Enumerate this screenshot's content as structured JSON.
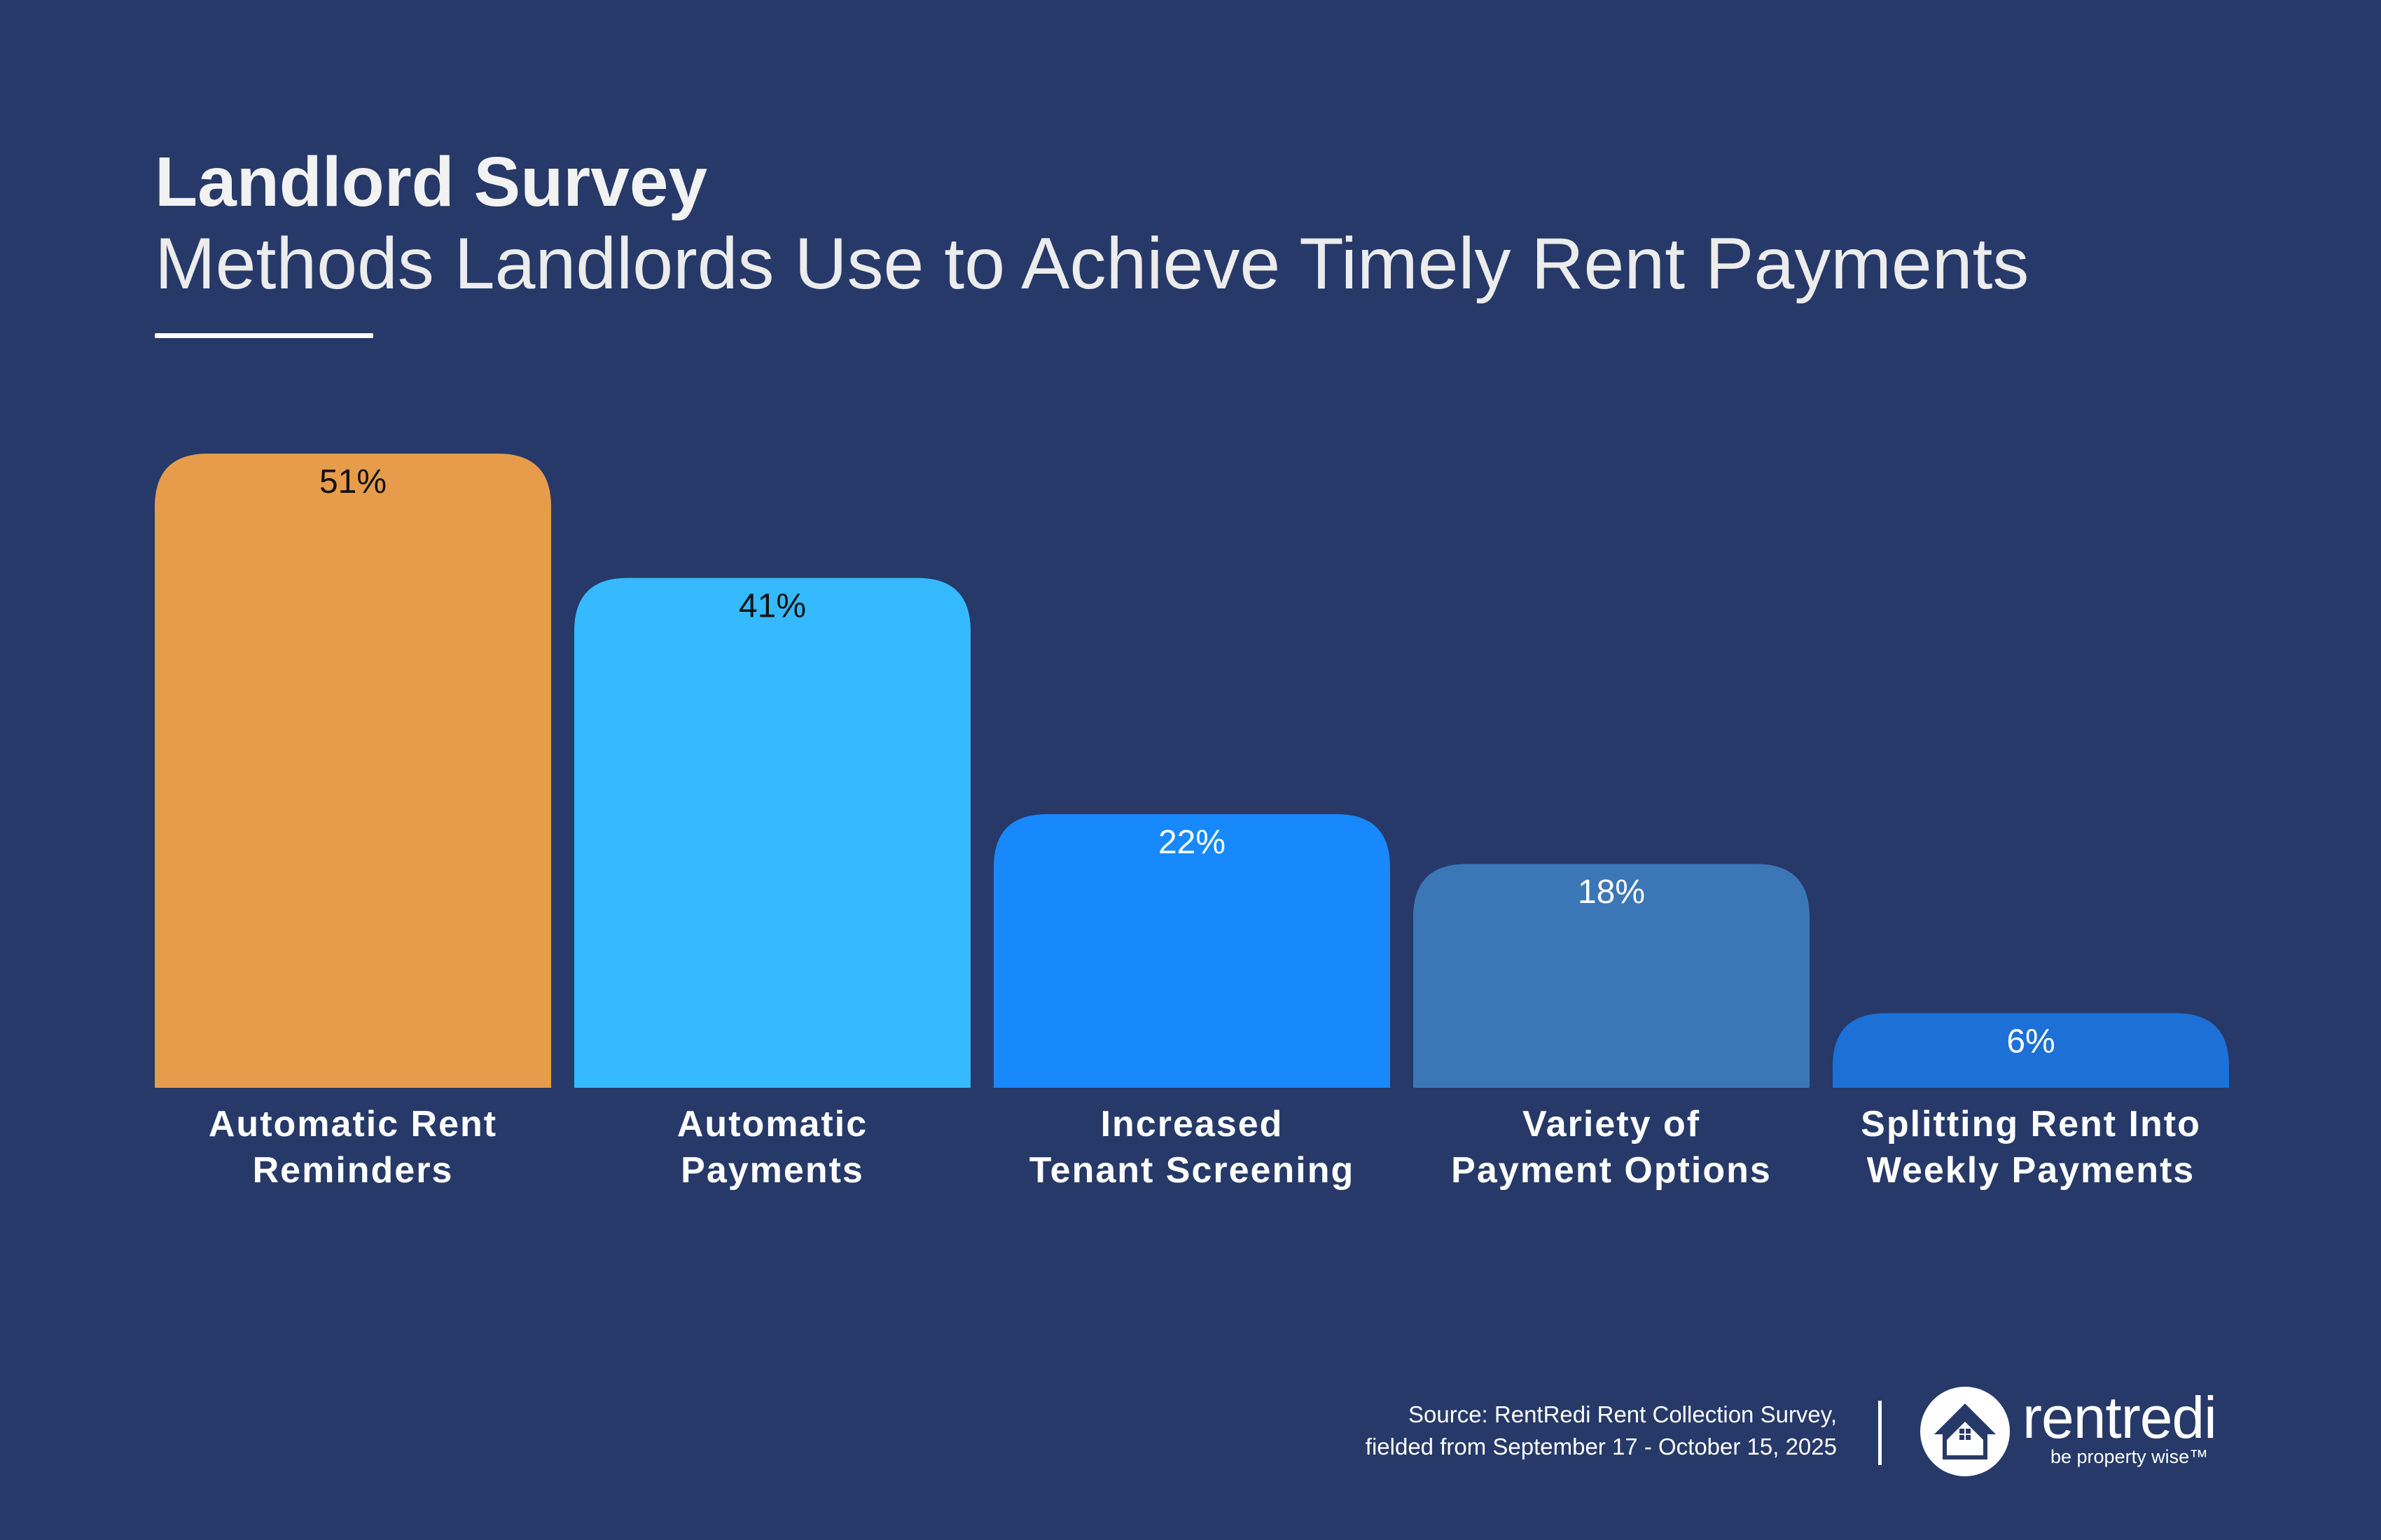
{
  "header": {
    "title": "Landlord Survey",
    "subtitle": "Methods Landlords Use to Achieve Timely Rent Payments"
  },
  "chart_data": {
    "type": "bar",
    "title": "Landlord Survey",
    "subtitle": "Methods Landlords Use to Achieve Timely Rent Payments",
    "categories": [
      [
        "Automatic Rent",
        "Reminders"
      ],
      [
        "Automatic",
        "Payments"
      ],
      [
        "Increased",
        "Tenant Screening"
      ],
      [
        "Variety of",
        "Payment Options"
      ],
      [
        "Splitting Rent Into",
        "Weekly Payments"
      ]
    ],
    "values": [
      51,
      41,
      22,
      18,
      6
    ],
    "value_labels": [
      "51%",
      "41%",
      "22%",
      "18%",
      "6%"
    ],
    "colors": [
      "#e69c4a",
      "#35baff",
      "#1789fd",
      "#3b77b6",
      "#1c70d6"
    ],
    "label_colors": [
      "#111111",
      "#111111",
      "#ffffff",
      "#ffffff",
      "#ffffff"
    ],
    "ylim": [
      0,
      51
    ],
    "grid": false,
    "legend": "none"
  },
  "footer": {
    "source_line1": "Source: RentRedi Rent Collection Survey,",
    "source_line2": "fielded from September 17 - October 15, 2025",
    "logo_text": "rentredi",
    "tagline": "be property wise™"
  }
}
